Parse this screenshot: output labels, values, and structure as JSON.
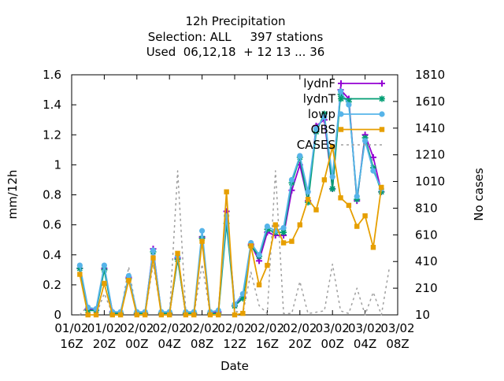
{
  "chart_data": {
    "type": "line",
    "title_lines": [
      "12h Precipitation",
      "Selection: ALL     397 stations",
      "Used  06,12,18  + 12 13 ... 36"
    ],
    "xlabel": "Date",
    "ylabel": "mm/12h",
    "y2label": "No cases",
    "xticks": [
      {
        "t": 0,
        "l1": "01/02",
        "l2": "16Z"
      },
      {
        "t": 4,
        "l1": "01/02",
        "l2": "20Z"
      },
      {
        "t": 8,
        "l1": "02/02",
        "l2": "00Z"
      },
      {
        "t": 12,
        "l1": "02/02",
        "l2": "04Z"
      },
      {
        "t": 16,
        "l1": "02/02",
        "l2": "08Z"
      },
      {
        "t": 20,
        "l1": "02/02",
        "l2": "12Z"
      },
      {
        "t": 24,
        "l1": "02/02",
        "l2": "16Z"
      },
      {
        "t": 28,
        "l1": "02/02",
        "l2": "20Z"
      },
      {
        "t": 32,
        "l1": "03/02",
        "l2": "00Z"
      },
      {
        "t": 36,
        "l1": "03/02",
        "l2": "04Z"
      },
      {
        "t": 40,
        "l1": "03/02",
        "l2": "08Z"
      }
    ],
    "xlim": [
      0,
      40
    ],
    "ylim": [
      0,
      1.6
    ],
    "yticks": [
      0,
      0.2,
      0.4,
      0.6,
      0.8,
      1,
      1.2,
      1.4,
      1.6
    ],
    "ytick_labels": [
      "0",
      "0.2",
      "0.4",
      "0.6",
      "0.8",
      "1",
      "1.2",
      "1.4",
      "1.6"
    ],
    "y2lim": [
      10,
      1810
    ],
    "y2ticks": [
      10,
      210,
      410,
      610,
      810,
      1010,
      1210,
      1410,
      1610,
      1810
    ],
    "y2tick_labels": [
      "10",
      "210",
      "410",
      "610",
      "810",
      "1010",
      "1210",
      "1410",
      "1610",
      "1810"
    ],
    "legend_position": "top-right",
    "x": [
      1,
      2,
      3,
      4,
      5,
      6,
      7,
      8,
      9,
      10,
      11,
      12,
      13,
      14,
      15,
      16,
      17,
      18,
      19,
      20,
      21,
      22,
      23,
      24,
      25,
      26,
      27,
      28,
      29,
      30,
      31,
      32,
      33,
      34,
      35,
      36,
      37,
      38,
      39
    ],
    "series": [
      {
        "name": "lydnF",
        "color": "#9400d3",
        "marker": "plus",
        "axis": "y1",
        "values": [
          0.31,
          0.04,
          0.03,
          0.31,
          0.02,
          0.01,
          0.25,
          0.01,
          0.01,
          0.44,
          0.01,
          0.01,
          0.38,
          0.01,
          0.01,
          0.52,
          0.01,
          0.02,
          0.69,
          0.06,
          0.12,
          0.47,
          0.36,
          0.55,
          0.53,
          0.53,
          0.83,
          1.0,
          0.76,
          1.26,
          1.3,
          0.84,
          1.5,
          1.44,
          0.76,
          1.2,
          1.05,
          0.82,
          null
        ]
      },
      {
        "name": "lydnT",
        "color": "#009e73",
        "marker": "star",
        "axis": "y1",
        "values": [
          0.31,
          0.03,
          0.03,
          0.3,
          0.01,
          0.01,
          0.24,
          0.01,
          0.01,
          0.42,
          0.01,
          0.01,
          0.37,
          0.01,
          0.01,
          0.51,
          0.01,
          0.01,
          0.61,
          0.06,
          0.11,
          0.46,
          0.39,
          0.57,
          0.55,
          0.55,
          0.88,
          1.05,
          0.75,
          1.22,
          1.34,
          0.84,
          1.47,
          1.42,
          0.77,
          1.18,
          0.98,
          0.82,
          null
        ]
      },
      {
        "name": "lowp",
        "color": "#56b4e9",
        "marker": "circle",
        "axis": "y1",
        "values": [
          0.33,
          0.05,
          0.04,
          0.33,
          0.02,
          0.02,
          0.26,
          0.02,
          0.02,
          0.43,
          0.02,
          0.02,
          0.39,
          0.02,
          0.02,
          0.56,
          0.02,
          0.03,
          0.66,
          0.07,
          0.14,
          0.48,
          0.4,
          0.59,
          0.56,
          0.58,
          0.9,
          1.06,
          0.82,
          1.24,
          1.32,
          0.92,
          1.49,
          1.4,
          0.79,
          1.16,
          0.96,
          0.84,
          null
        ]
      },
      {
        "name": "OBS",
        "color": "#e69f00",
        "marker": "square",
        "axis": "y1",
        "values": [
          0.27,
          0.0,
          0.0,
          0.21,
          0.0,
          0.0,
          0.23,
          0.0,
          0.0,
          0.38,
          0.0,
          0.0,
          0.41,
          0.0,
          0.0,
          0.49,
          0.0,
          0.0,
          0.82,
          0.0,
          0.01,
          0.46,
          0.2,
          0.33,
          0.6,
          0.48,
          0.49,
          0.6,
          0.77,
          0.7,
          0.9,
          1.12,
          0.78,
          0.73,
          0.59,
          0.66,
          0.45,
          0.85,
          null
        ]
      },
      {
        "name": "CASES",
        "color": "#a0a0a0",
        "dash": true,
        "marker": "none",
        "axis": "y2",
        "values": [
          10,
          80,
          10,
          170,
          20,
          10,
          370,
          10,
          10,
          390,
          20,
          10,
          1090,
          40,
          10,
          390,
          20,
          10,
          880,
          40,
          20,
          330,
          80,
          20,
          1090,
          20,
          20,
          260,
          20,
          30,
          40,
          390,
          40,
          20,
          210,
          10,
          180,
          10,
          370
        ]
      }
    ]
  }
}
